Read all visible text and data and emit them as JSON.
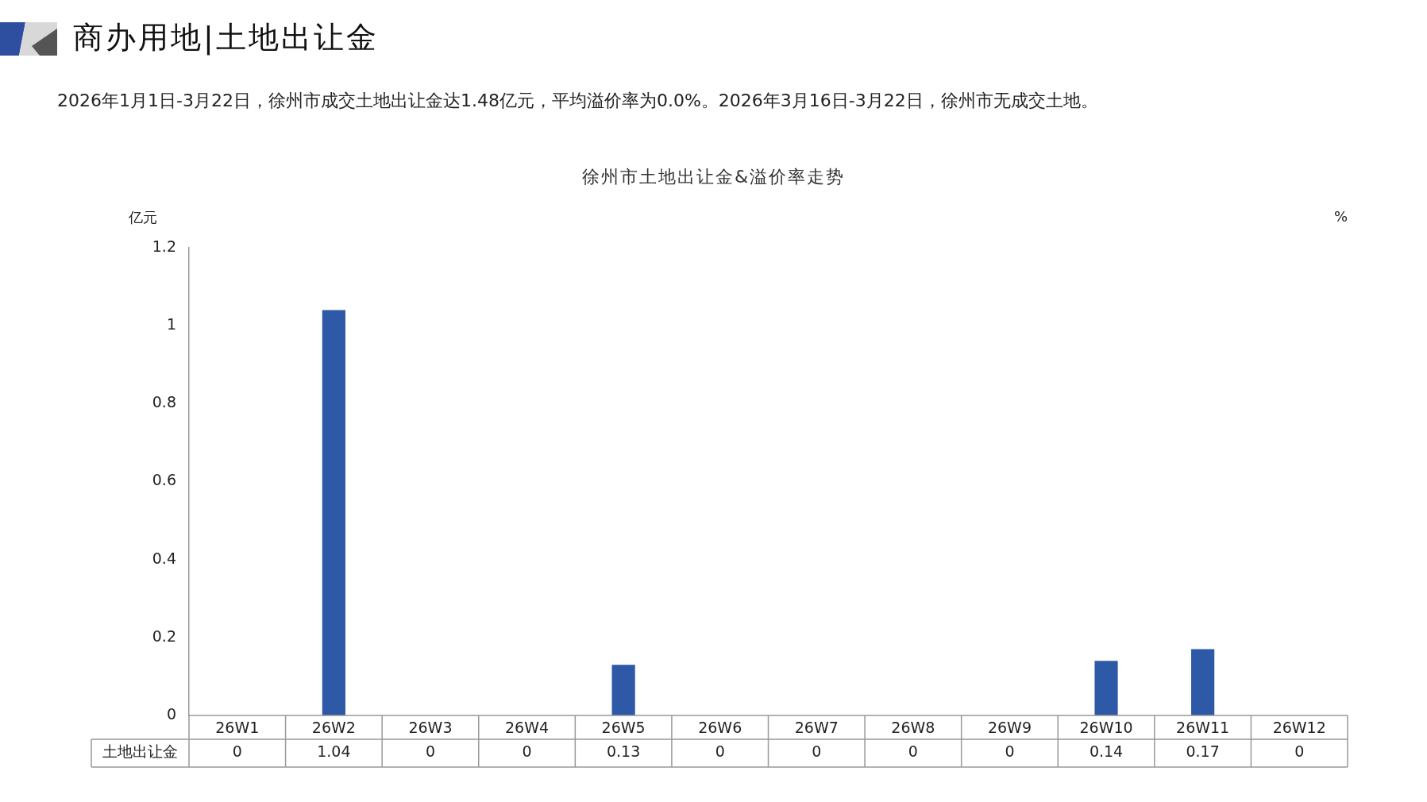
{
  "chart_data": {
    "type": "bar",
    "title": "商办用地|土地出让金",
    "subtitle": "2026年1月1日-3月22日，徐州市成交土地出让金达1.48亿元，平均溢价率为0.0%。2026年3月16日-3月22日，徐州市无成交土地。",
    "annotations": [
      "徐州市土地出让金&溢价率走势"
    ],
    "ylabel": "亿元",
    "y2label": "%",
    "categories": [
      "26W1",
      "26W2",
      "26W3",
      "26W4",
      "26W5",
      "26W6",
      "26W7",
      "26W8",
      "26W9",
      "26W10",
      "26W11",
      "26W12"
    ],
    "series": [
      {
        "name": "土地出让金",
        "color": "#2e59a7",
        "values": [
          0,
          1.04,
          0,
          0,
          0.13,
          0,
          0,
          0,
          0,
          0.14,
          0.17,
          0
        ]
      }
    ],
    "ylim": [
      0,
      1.2
    ],
    "yticks": [
      0,
      0.2,
      0.4,
      0.6,
      0.8,
      1,
      1.2
    ],
    "grid": false,
    "legend": false,
    "data_labels": true
  }
}
